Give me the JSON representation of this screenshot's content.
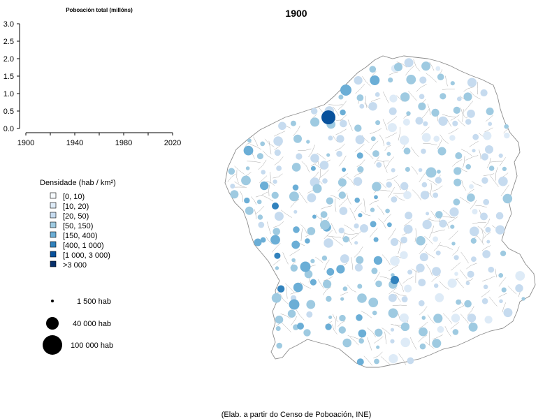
{
  "title": "1900",
  "source": "(Elab. a partir do Censo de Poboación, INE)",
  "colors": {
    "classes": [
      "#f7fbff",
      "#deebf7",
      "#c6dbef",
      "#9ecae1",
      "#6baed6",
      "#3182bd",
      "#08519c",
      "#08306b"
    ],
    "border": "#8c8c8c"
  },
  "mini_chart": {
    "title": "Poboación total (millóns)",
    "y_ticks": [
      "3.0",
      "2.5",
      "2.0",
      "1.5",
      "1.0",
      "0.5",
      "0.0"
    ],
    "x_ticks": [
      "1900",
      "1940",
      "1980",
      "2020"
    ]
  },
  "chart_data": {
    "type": "line",
    "title": "Poboación total (millóns)",
    "xlim": [
      1900,
      2020
    ],
    "ylim": [
      0,
      3.0
    ],
    "x_ticks": [
      1900,
      1940,
      1980,
      2020
    ],
    "y_ticks": [
      0.0,
      0.5,
      1.0,
      1.5,
      2.0,
      2.5,
      3.0
    ],
    "series": []
  },
  "legend": {
    "title": "Densidade (hab / km²)",
    "classes": [
      "[0, 10)",
      "[10, 20)",
      "[20, 50)",
      "[50, 150)",
      "[150, 400)",
      "[400, 1 000)",
      "[1 000, 3 000)",
      ">3 000"
    ]
  },
  "size_legend": [
    {
      "label": "1 500 hab"
    },
    {
      "label": "40 000 hab"
    },
    {
      "label": "100 000 hab"
    }
  ]
}
